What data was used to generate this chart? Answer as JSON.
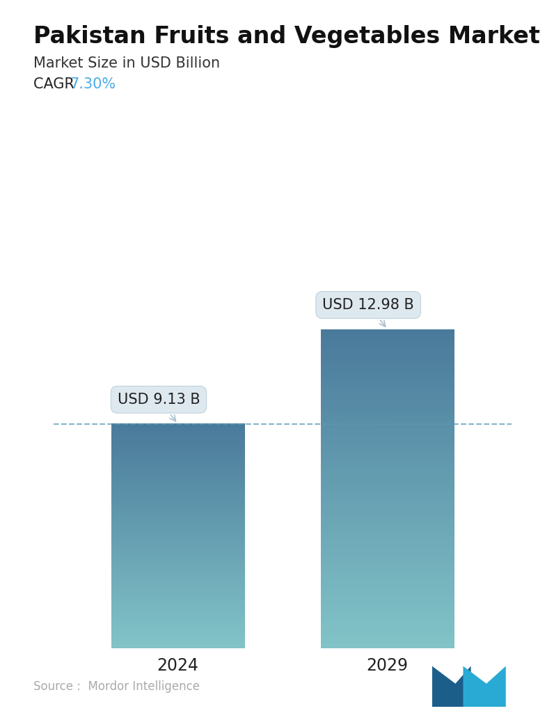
{
  "title": "Pakistan Fruits and Vegetables Market",
  "subtitle": "Market Size in USD Billion",
  "cagr_label": "CAGR",
  "cagr_value": "7.30%",
  "cagr_color": "#4AACE8",
  "categories": [
    "2024",
    "2029"
  ],
  "values": [
    9.13,
    12.98
  ],
  "bar_labels": [
    "USD 9.13 B",
    "USD 12.98 B"
  ],
  "bar_top_color": "#4A7A9B",
  "bar_bottom_color": "#82C4C8",
  "dashed_line_color": "#5A9BB5",
  "dashed_line_y": 9.13,
  "source_text": "Source :  Mordor Intelligence",
  "source_color": "#AAAAAA",
  "background_color": "#ffffff",
  "title_fontsize": 24,
  "subtitle_fontsize": 15,
  "cagr_fontsize": 15,
  "tick_fontsize": 17,
  "annotation_fontsize": 15,
  "ylim": [
    0,
    17
  ],
  "bar_width": 0.28,
  "x_positions": [
    0.28,
    0.72
  ]
}
